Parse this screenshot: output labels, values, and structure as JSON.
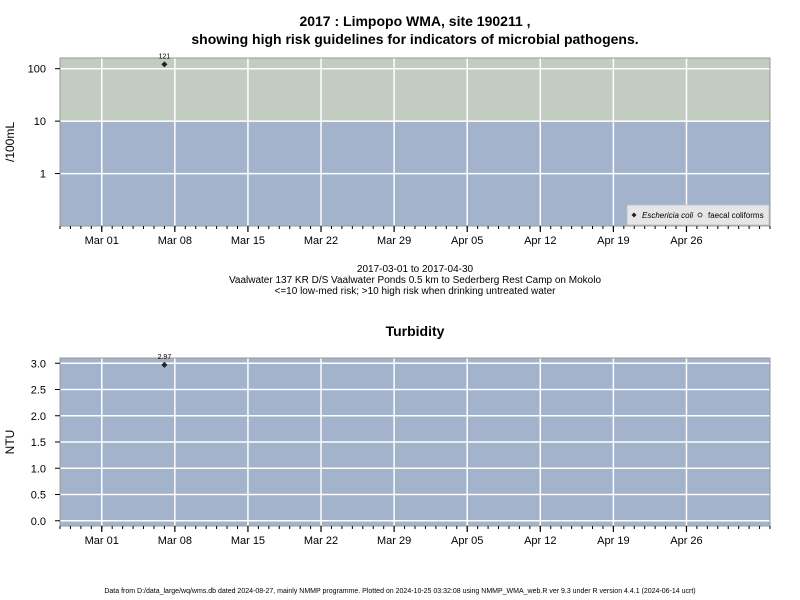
{
  "chart_data": [
    {
      "type": "scatter",
      "title_line1": "2017 : Limpopo WMA, site 190211 ,",
      "title_line2": "showing high risk guidelines for indicators of microbial pathogens.",
      "ylabel": "/100mL",
      "yscale": "log",
      "ylim": [
        0.1,
        160
      ],
      "yticks": [
        1,
        10,
        100
      ],
      "ytick_labels": [
        "1",
        "10",
        "100"
      ],
      "xlim": [
        "2017-02-25",
        "2017-05-04"
      ],
      "xticks": [
        "2017-03-01",
        "2017-03-08",
        "2017-03-15",
        "2017-03-22",
        "2017-03-29",
        "2017-04-05",
        "2017-04-12",
        "2017-04-19",
        "2017-04-26"
      ],
      "xtick_labels": [
        "Mar 01",
        "Mar 08",
        "Mar 15",
        "Mar 22",
        "Mar 29",
        "Apr 05",
        "Apr 12",
        "Apr 19",
        "Apr 26"
      ],
      "bands": [
        {
          "from": 0.1,
          "to": 10,
          "color": "#a3b3cb"
        },
        {
          "from": 10,
          "to": 160,
          "color": "#c3ccc1"
        }
      ],
      "series": [
        {
          "name": "Eschericia coli",
          "marker": "filled-diamond",
          "points": [
            {
              "x": "2017-03-07",
              "y": 121,
              "label": "121"
            }
          ]
        },
        {
          "name": "faecal coliforms",
          "marker": "open-circle",
          "points": []
        }
      ],
      "legend_position": "bottom-right",
      "caption_lines": [
        "2017-03-01 to 2017-04-30",
        "Vaalwater 137 KR D/S Vaalwater Ponds 0.5 km to Sederberg Rest Camp on Mokolo",
        "<=10 low-med risk; >10 high risk when drinking untreated water"
      ]
    },
    {
      "type": "scatter",
      "title": "Turbidity",
      "ylabel": "NTU",
      "yscale": "linear",
      "ylim": [
        -0.1,
        3.1
      ],
      "yticks": [
        0,
        0.5,
        1,
        1.5,
        2,
        2.5,
        3
      ],
      "ytick_labels": [
        "0.0",
        "0.5",
        "1.0",
        "1.5",
        "2.0",
        "2.5",
        "3.0"
      ],
      "xlim": [
        "2017-02-25",
        "2017-05-04"
      ],
      "xticks": [
        "2017-03-01",
        "2017-03-08",
        "2017-03-15",
        "2017-03-22",
        "2017-03-29",
        "2017-04-05",
        "2017-04-12",
        "2017-04-19",
        "2017-04-26"
      ],
      "xtick_labels": [
        "Mar 01",
        "Mar 08",
        "Mar 15",
        "Mar 22",
        "Mar 29",
        "Apr 05",
        "Apr 12",
        "Apr 19",
        "Apr 26"
      ],
      "background": "#a3b3cb",
      "series": [
        {
          "name": "Turbidity",
          "marker": "filled-diamond",
          "points": [
            {
              "x": "2017-03-07",
              "y": 2.97,
              "label": "2.97"
            }
          ]
        }
      ]
    }
  ],
  "footer": "Data from D:/data_large/wq/wms.db dated 2024-08-27, mainly NMMP programme. Plotted on 2024-10-25 03:32:08 using NMMP_WMA_web.R ver 9.3 under R version 4.4.1 (2024-06-14 ucrt)"
}
